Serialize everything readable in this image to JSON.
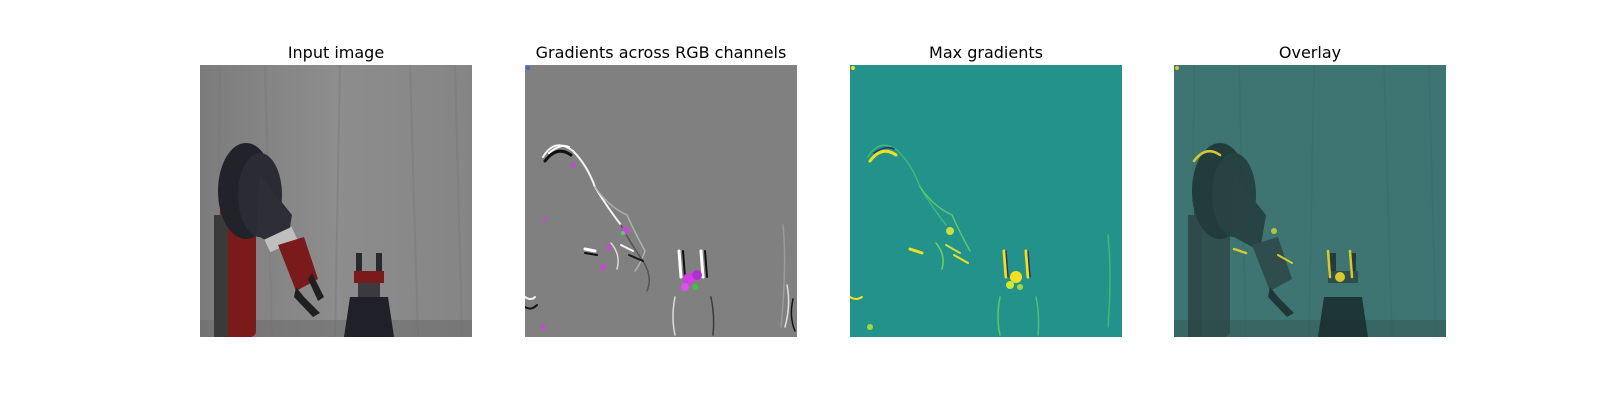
{
  "panels": [
    {
      "title": "Input image"
    },
    {
      "title": "Gradients across RGB channels"
    },
    {
      "title": "Max gradients"
    },
    {
      "title": "Overlay"
    }
  ],
  "colors": {
    "background": "#ffffff",
    "input_backdrop": "#8a8a8a",
    "robot_red": "#7a1a1a",
    "robot_dark": "#25252a",
    "gradient_gray": "#808080",
    "gradient_magenta": "#d040e0",
    "maxgrad_teal": "#22928a",
    "maxgrad_yellow": "#f0e020",
    "overlay_teal": "#3e7572"
  }
}
